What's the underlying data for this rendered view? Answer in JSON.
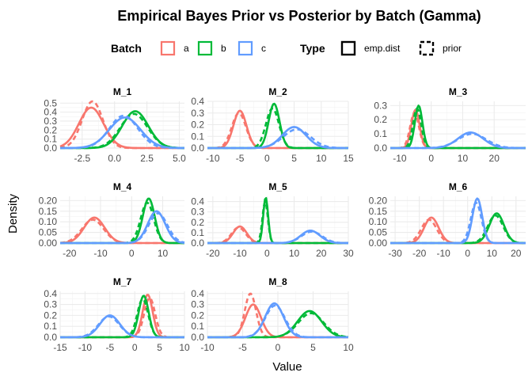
{
  "chart_data": {
    "type": "line",
    "title": "Empirical Bayes Prior vs Posterior by Batch (Gamma)",
    "xlabel": "Value",
    "ylabel": "Density",
    "legend": {
      "position": "top",
      "batch_title": "Batch",
      "batches": [
        {
          "name": "a",
          "color": "#F8766D"
        },
        {
          "name": "b",
          "color": "#00BA38"
        },
        {
          "name": "c",
          "color": "#619CFF"
        }
      ],
      "type_title": "Type",
      "types": [
        {
          "name": "emp.dist",
          "linetype": "solid"
        },
        {
          "name": "prior",
          "linetype": "dashed"
        }
      ]
    },
    "panels": [
      {
        "name": "M_1",
        "xlim": [
          -4.2,
          5.4
        ],
        "ylim": [
          0,
          0.52
        ],
        "xticks": [
          -2.5,
          0.0,
          2.5,
          5.0
        ],
        "xtick_labels": [
          "-2.5",
          "0.0",
          "2.5",
          "5.0"
        ],
        "yticks": [
          0.0,
          0.1,
          0.2,
          0.3,
          0.4,
          0.5
        ],
        "ytick_labels": [
          "0.0",
          "0.1",
          "0.2",
          "0.3",
          "0.4",
          "0.5"
        ],
        "series": [
          {
            "batch": "a",
            "type": "emp.dist",
            "mean": -1.8,
            "sd": 0.95,
            "peak": 0.45
          },
          {
            "batch": "a",
            "type": "prior",
            "mean": -1.7,
            "sd": 0.8,
            "peak": 0.52
          },
          {
            "batch": "b",
            "type": "emp.dist",
            "mean": 1.6,
            "sd": 1.0,
            "peak": 0.41
          },
          {
            "batch": "b",
            "type": "prior",
            "mean": 1.5,
            "sd": 1.05,
            "peak": 0.38
          },
          {
            "batch": "c",
            "type": "emp.dist",
            "mean": 0.8,
            "sd": 1.2,
            "peak": 0.34
          },
          {
            "batch": "c",
            "type": "prior",
            "mean": 0.7,
            "sd": 1.1,
            "peak": 0.36
          }
        ]
      },
      {
        "name": "M_2",
        "xlim": [
          -11,
          15
        ],
        "ylim": [
          0,
          0.4
        ],
        "xticks": [
          -10,
          -5,
          0,
          5,
          10,
          15
        ],
        "xtick_labels": [
          "-10",
          "-5",
          "0",
          "5",
          "10",
          "15"
        ],
        "yticks": [
          0.0,
          0.1,
          0.2,
          0.3,
          0.4
        ],
        "ytick_labels": [
          "0.0",
          "0.1",
          "0.2",
          "0.3",
          "0.4"
        ],
        "series": [
          {
            "batch": "a",
            "type": "emp.dist",
            "mean": -5.0,
            "sd": 1.2,
            "peak": 0.32
          },
          {
            "batch": "a",
            "type": "prior",
            "mean": -5.2,
            "sd": 1.3,
            "peak": 0.3
          },
          {
            "batch": "b",
            "type": "emp.dist",
            "mean": 1.3,
            "sd": 1.0,
            "peak": 0.38
          },
          {
            "batch": "b",
            "type": "prior",
            "mean": 1.0,
            "sd": 1.2,
            "peak": 0.34
          },
          {
            "batch": "c",
            "type": "emp.dist",
            "mean": 5.0,
            "sd": 2.2,
            "peak": 0.18
          },
          {
            "batch": "c",
            "type": "prior",
            "mean": 5.5,
            "sd": 2.5,
            "peak": 0.16
          }
        ]
      },
      {
        "name": "M_3",
        "xlim": [
          -13,
          30
        ],
        "ylim": [
          0,
          0.33
        ],
        "xticks": [
          -10,
          0,
          10,
          20
        ],
        "xtick_labels": [
          "-10",
          "0",
          "10",
          "20"
        ],
        "yticks": [
          0.0,
          0.1,
          0.2,
          0.3
        ],
        "ytick_labels": [
          "0.0",
          "0.1",
          "0.2",
          "0.3"
        ],
        "series": [
          {
            "batch": "a",
            "type": "emp.dist",
            "mean": -5.0,
            "sd": 1.3,
            "peak": 0.27
          },
          {
            "batch": "a",
            "type": "prior",
            "mean": -5.3,
            "sd": 1.4,
            "peak": 0.25
          },
          {
            "batch": "b",
            "type": "emp.dist",
            "mean": -4.0,
            "sd": 1.2,
            "peak": 0.3
          },
          {
            "batch": "b",
            "type": "prior",
            "mean": -4.5,
            "sd": 1.3,
            "peak": 0.28
          },
          {
            "batch": "c",
            "type": "emp.dist",
            "mean": 12.5,
            "sd": 4.0,
            "peak": 0.11
          },
          {
            "batch": "c",
            "type": "prior",
            "mean": 13.0,
            "sd": 4.5,
            "peak": 0.1
          }
        ]
      },
      {
        "name": "M_4",
        "xlim": [
          -23,
          17
        ],
        "ylim": [
          0,
          0.22
        ],
        "xticks": [
          -20,
          -10,
          0,
          10
        ],
        "xtick_labels": [
          "-20",
          "-10",
          "0",
          "10"
        ],
        "yticks": [
          0.0,
          0.05,
          0.1,
          0.15,
          0.2
        ],
        "ytick_labels": [
          "0.00",
          "0.05",
          "0.10",
          "0.15",
          "0.20"
        ],
        "series": [
          {
            "batch": "a",
            "type": "emp.dist",
            "mean": -12.0,
            "sd": 3.3,
            "peak": 0.12
          },
          {
            "batch": "a",
            "type": "prior",
            "mean": -12.5,
            "sd": 3.5,
            "peak": 0.11
          },
          {
            "batch": "b",
            "type": "emp.dist",
            "mean": 5.5,
            "sd": 1.9,
            "peak": 0.21
          },
          {
            "batch": "b",
            "type": "prior",
            "mean": 5.0,
            "sd": 2.1,
            "peak": 0.19
          },
          {
            "batch": "c",
            "type": "emp.dist",
            "mean": 8.0,
            "sd": 2.8,
            "peak": 0.15
          },
          {
            "batch": "c",
            "type": "prior",
            "mean": 8.5,
            "sd": 3.0,
            "peak": 0.14
          }
        ]
      },
      {
        "name": "M_5",
        "xlim": [
          -22,
          30
        ],
        "ylim": [
          0,
          0.45
        ],
        "xticks": [
          -20,
          -10,
          0,
          10,
          20,
          30
        ],
        "xtick_labels": [
          "-20",
          "-10",
          "0",
          "10",
          "20",
          "30"
        ],
        "yticks": [
          0.0,
          0.1,
          0.2,
          0.3,
          0.4
        ],
        "ytick_labels": [
          "0.0",
          "0.1",
          "0.2",
          "0.3",
          "0.4"
        ],
        "series": [
          {
            "batch": "a",
            "type": "emp.dist",
            "mean": -10.0,
            "sd": 2.5,
            "peak": 0.16
          },
          {
            "batch": "a",
            "type": "prior",
            "mean": -10.5,
            "sd": 2.6,
            "peak": 0.15
          },
          {
            "batch": "b",
            "type": "emp.dist",
            "mean": -0.5,
            "sd": 0.9,
            "peak": 0.44
          },
          {
            "batch": "b",
            "type": "prior",
            "mean": -0.7,
            "sd": 1.0,
            "peak": 0.4
          },
          {
            "batch": "c",
            "type": "emp.dist",
            "mean": 16.0,
            "sd": 3.5,
            "peak": 0.12
          },
          {
            "batch": "c",
            "type": "prior",
            "mean": 16.5,
            "sd": 3.8,
            "peak": 0.11
          }
        ]
      },
      {
        "name": "M_6",
        "xlim": [
          -32,
          24
        ],
        "ylim": [
          0,
          0.22
        ],
        "xticks": [
          -30,
          -20,
          -10,
          0,
          10,
          20
        ],
        "xtick_labels": [
          "-30",
          "-20",
          "-10",
          "0",
          "10",
          "20"
        ],
        "yticks": [
          0.0,
          0.05,
          0.1,
          0.15,
          0.2
        ],
        "ytick_labels": [
          "0.00",
          "0.05",
          "0.10",
          "0.15",
          "0.20"
        ],
        "series": [
          {
            "batch": "a",
            "type": "emp.dist",
            "mean": -15.0,
            "sd": 3.0,
            "peak": 0.12
          },
          {
            "batch": "a",
            "type": "prior",
            "mean": -16.0,
            "sd": 3.2,
            "peak": 0.11
          },
          {
            "batch": "b",
            "type": "emp.dist",
            "mean": 12.0,
            "sd": 3.0,
            "peak": 0.14
          },
          {
            "batch": "b",
            "type": "prior",
            "mean": 11.5,
            "sd": 3.2,
            "peak": 0.13
          },
          {
            "batch": "c",
            "type": "emp.dist",
            "mean": 4.0,
            "sd": 2.0,
            "peak": 0.21
          },
          {
            "batch": "c",
            "type": "prior",
            "mean": 3.5,
            "sd": 2.2,
            "peak": 0.19
          }
        ]
      },
      {
        "name": "M_7",
        "xlim": [
          -15,
          10
        ],
        "ylim": [
          0,
          0.42
        ],
        "xticks": [
          -15,
          -10,
          -5,
          0,
          5,
          10
        ],
        "xtick_labels": [
          "-15",
          "-10",
          "-5",
          "0",
          "5",
          "10"
        ],
        "yticks": [
          0.0,
          0.1,
          0.2,
          0.3,
          0.4
        ],
        "ytick_labels": [
          "0.0",
          "0.1",
          "0.2",
          "0.3",
          "0.4"
        ],
        "series": [
          {
            "batch": "a",
            "type": "emp.dist",
            "mean": 2.6,
            "sd": 1.0,
            "peak": 0.39
          },
          {
            "batch": "a",
            "type": "prior",
            "mean": 3.0,
            "sd": 1.1,
            "peak": 0.36
          },
          {
            "batch": "b",
            "type": "emp.dist",
            "mean": 1.8,
            "sd": 1.0,
            "peak": 0.38
          },
          {
            "batch": "b",
            "type": "prior",
            "mean": 1.6,
            "sd": 1.1,
            "peak": 0.35
          },
          {
            "batch": "c",
            "type": "emp.dist",
            "mean": -5.0,
            "sd": 2.0,
            "peak": 0.2
          },
          {
            "batch": "c",
            "type": "prior",
            "mean": -5.2,
            "sd": 2.1,
            "peak": 0.19
          }
        ]
      },
      {
        "name": "M_8",
        "xlim": [
          -10,
          10
        ],
        "ylim": [
          0,
          0.42
        ],
        "xticks": [
          -10,
          -5,
          0,
          5,
          10
        ],
        "xtick_labels": [
          "-10",
          "-5",
          "0",
          "5",
          "10"
        ],
        "yticks": [
          0.0,
          0.1,
          0.2,
          0.3,
          0.4
        ],
        "ytick_labels": [
          "0.0",
          "0.1",
          "0.2",
          "0.3",
          "0.4"
        ],
        "series": [
          {
            "batch": "a",
            "type": "emp.dist",
            "mean": -3.5,
            "sd": 1.1,
            "peak": 0.3
          },
          {
            "batch": "a",
            "type": "prior",
            "mean": -3.9,
            "sd": 0.8,
            "peak": 0.4
          },
          {
            "batch": "b",
            "type": "emp.dist",
            "mean": 4.5,
            "sd": 1.7,
            "peak": 0.24
          },
          {
            "batch": "b",
            "type": "prior",
            "mean": 4.7,
            "sd": 1.8,
            "peak": 0.22
          },
          {
            "batch": "c",
            "type": "emp.dist",
            "mean": -0.5,
            "sd": 1.3,
            "peak": 0.31
          },
          {
            "batch": "c",
            "type": "prior",
            "mean": -0.4,
            "sd": 1.4,
            "peak": 0.29
          }
        ]
      }
    ]
  }
}
